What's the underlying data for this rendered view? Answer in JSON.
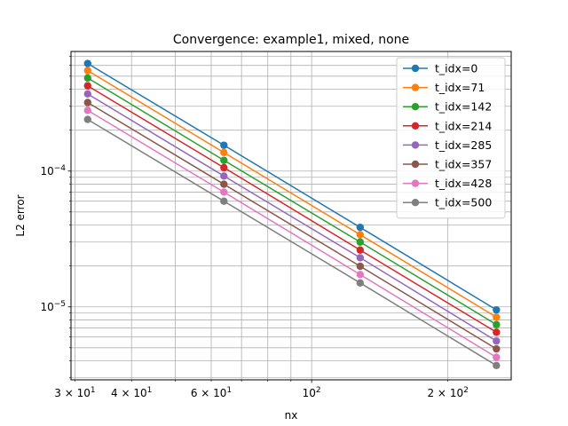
{
  "chart_data": {
    "type": "line",
    "title": "Convergence: example1, mixed, none",
    "xlabel": "nx",
    "ylabel": "L2 error",
    "xscale": "log",
    "yscale": "log",
    "xlim": [
      29.4,
      276
    ],
    "ylim": [
      2.9e-06,
      0.00076
    ],
    "grid": "both (major and minor)",
    "legend_position": "top-right",
    "x": [
      32,
      64,
      128,
      256
    ],
    "x_ticks": [
      {
        "value": 30,
        "label": "3 × 10^1"
      },
      {
        "value": 40,
        "label": "4 × 10^1"
      },
      {
        "value": 60,
        "label": "6 × 10^1"
      },
      {
        "value": 100,
        "label": "10^2"
      },
      {
        "value": 200,
        "label": "2 × 10^2"
      }
    ],
    "y_ticks": [
      {
        "value": 1e-05,
        "label": "10^−5"
      },
      {
        "value": 0.0001,
        "label": "10^−4"
      }
    ],
    "series": [
      {
        "name": "t_idx=0",
        "color": "#1f77b4",
        "values": [
          0.00062,
          0.000155,
          3.85e-05,
          9.5e-06
        ]
      },
      {
        "name": "t_idx=71",
        "color": "#ff7f0e",
        "values": [
          0.00055,
          0.000137,
          3.4e-05,
          8.4e-06
        ]
      },
      {
        "name": "t_idx=142",
        "color": "#2ca02c",
        "values": [
          0.000485,
          0.00012,
          3e-05,
          7.4e-06
        ]
      },
      {
        "name": "t_idx=214",
        "color": "#d62728",
        "values": [
          0.000425,
          0.000106,
          2.62e-05,
          6.5e-06
        ]
      },
      {
        "name": "t_idx=285",
        "color": "#9467bd",
        "values": [
          0.00037,
          9.2e-05,
          2.3e-05,
          5.6e-06
        ]
      },
      {
        "name": "t_idx=357",
        "color": "#8c564b",
        "values": [
          0.00032,
          8e-05,
          1.99e-05,
          4.9e-06
        ]
      },
      {
        "name": "t_idx=428",
        "color": "#e377c2",
        "values": [
          0.00028,
          7e-05,
          1.73e-05,
          4.25e-06
        ]
      },
      {
        "name": "t_idx=500",
        "color": "#7f7f7f",
        "values": [
          0.00024,
          6e-05,
          1.5e-05,
          3.7e-06
        ]
      }
    ]
  }
}
